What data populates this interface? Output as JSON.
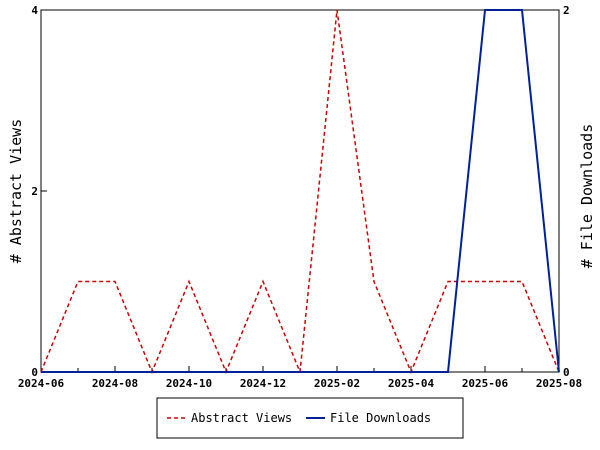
{
  "chart_data": {
    "type": "line",
    "x": [
      "2024-06",
      "2024-07",
      "2024-08",
      "2024-09",
      "2024-10",
      "2024-11",
      "2024-12",
      "2025-01",
      "2025-02",
      "2025-03",
      "2025-04",
      "2025-05",
      "2025-06",
      "2025-07",
      "2025-08"
    ],
    "x_tick_labels": [
      "2024-06",
      "2024-08",
      "2024-10",
      "2024-12",
      "2025-02",
      "2025-04",
      "2025-06",
      "2025-08"
    ],
    "series": [
      {
        "name": "Abstract Views",
        "axis": "left",
        "color": "#cc0000",
        "dash": "dashed",
        "values": [
          0,
          1,
          1,
          0,
          1,
          0,
          1,
          0,
          4,
          1,
          0,
          1,
          1,
          1,
          0
        ]
      },
      {
        "name": "File Downloads",
        "axis": "right",
        "color": "#00219a",
        "dash": "solid",
        "values": [
          0,
          0,
          0,
          0,
          0,
          0,
          0,
          0,
          0,
          0,
          0,
          0,
          2,
          2,
          0
        ]
      }
    ],
    "ylabel_left": "# Abstract Views",
    "ylabel_right": "# File Downloads",
    "ylim_left": [
      0,
      4
    ],
    "ylim_right": [
      0,
      2
    ],
    "y_ticks_left": [
      "0",
      "2",
      "4"
    ],
    "y_ticks_right": [
      "0",
      "2"
    ],
    "grid": false,
    "legend_placement": "bottom"
  }
}
